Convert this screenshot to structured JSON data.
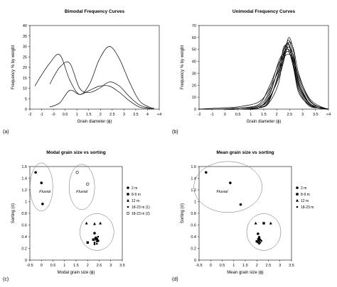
{
  "panel_labels": [
    "(a)",
    "(b)",
    "(c)",
    "(d)"
  ],
  "chart_data": [
    {
      "type": "line",
      "title": "Bimodal Frequency Curves",
      "xlabel": "Grain diameter (ϕ)",
      "ylabel": "Frequency % by weight",
      "xlim": [
        -2,
        4.5
      ],
      "ylim": [
        0,
        40
      ],
      "xticks": [
        "-2",
        "-1",
        "-0",
        "0.5",
        "1",
        "1.5",
        "2",
        "2.5",
        "3",
        "3.5",
        "4",
        "<4"
      ],
      "yticks": [
        "0",
        "5",
        "10",
        "15",
        "20",
        "25",
        "30",
        "35",
        "40"
      ],
      "series": [
        {
          "x": [
            -1.75,
            -1.5,
            -1,
            -0.5,
            0,
            0.5,
            1,
            1.5,
            2,
            2.5,
            3,
            3.5,
            4,
            4.25
          ],
          "values": [
            11,
            15,
            22,
            26,
            14,
            7,
            12,
            24,
            30,
            24,
            13,
            4,
            1,
            0.5
          ]
        },
        {
          "x": [
            -1,
            -0.5,
            0,
            0.5,
            1,
            1.5,
            2,
            2.5,
            3,
            3.5,
            4,
            4.25
          ],
          "values": [
            12,
            20,
            22,
            10,
            8,
            10,
            13,
            11,
            6,
            2,
            0.5,
            0
          ]
        },
        {
          "x": [
            -1,
            -0.5,
            0,
            0.5,
            1,
            1.5,
            2,
            2.5,
            3,
            3.5,
            4,
            4.25
          ],
          "values": [
            1,
            3,
            9,
            7,
            9,
            11,
            11,
            8,
            4,
            1,
            0.3,
            0
          ]
        }
      ]
    },
    {
      "type": "line",
      "title": "Unimodal Frequency Curves",
      "xlabel": "Grain diameter (ϕ)",
      "ylabel": "Frequency % by weight",
      "xlim": [
        -2,
        4.5
      ],
      "ylim": [
        0,
        70
      ],
      "xticks": [
        "-2",
        "-1",
        "0",
        "0.5",
        "1",
        "1.5",
        "2",
        "2.5",
        "3",
        "3.5",
        "<4"
      ],
      "yticks": [
        "0",
        "10",
        "20",
        "30",
        "40",
        "50",
        "60",
        "70"
      ],
      "series": [
        {
          "x": [
            -2,
            -1,
            0,
            1,
            1.5,
            2,
            2.25,
            2.5,
            2.75,
            3,
            3.5,
            4,
            4.5
          ],
          "values": [
            0,
            0,
            0,
            1,
            6,
            30,
            44,
            58,
            42,
            20,
            5,
            1,
            0
          ]
        },
        {
          "x": [
            -2,
            -1,
            0,
            1,
            1.5,
            2,
            2.25,
            2.5,
            2.75,
            3,
            3.5,
            4,
            4.5
          ],
          "values": [
            0,
            0,
            0,
            2,
            10,
            36,
            50,
            55,
            38,
            18,
            4,
            1,
            0
          ]
        },
        {
          "x": [
            -2,
            -1,
            0,
            1,
            1.5,
            2,
            2.25,
            2.5,
            2.75,
            3,
            3.5,
            4,
            4.5
          ],
          "values": [
            0,
            0,
            1,
            3,
            14,
            40,
            47,
            52,
            44,
            24,
            6,
            2,
            0
          ]
        },
        {
          "x": [
            -2,
            -1,
            0,
            1,
            1.5,
            2,
            2.25,
            2.5,
            2.75,
            3,
            3.5,
            4,
            4.5
          ],
          "values": [
            0,
            0,
            0,
            2,
            8,
            28,
            42,
            60,
            48,
            22,
            5,
            1,
            0
          ]
        },
        {
          "x": [
            -2,
            -1,
            0,
            1,
            1.5,
            2,
            2.25,
            2.5,
            2.75,
            3,
            3.5,
            4,
            4.5
          ],
          "values": [
            0,
            0,
            0,
            1,
            12,
            34,
            46,
            50,
            40,
            26,
            8,
            2,
            0
          ]
        },
        {
          "x": [
            -2,
            -1,
            0,
            1,
            1.5,
            2,
            2.25,
            2.5,
            2.75,
            3,
            3.5,
            4,
            4.5
          ],
          "values": [
            0,
            0,
            1,
            4,
            18,
            38,
            45,
            48,
            37,
            21,
            6,
            1,
            0
          ]
        },
        {
          "x": [
            -2,
            -1,
            0,
            1,
            1.5,
            2,
            2.25,
            2.5,
            2.75,
            3,
            3.5,
            4,
            4.5
          ],
          "values": [
            0,
            0,
            0,
            2,
            9,
            26,
            40,
            56,
            50,
            30,
            9,
            2,
            0
          ]
        },
        {
          "x": [
            -2,
            -1,
            0,
            1,
            1.5,
            2,
            2.25,
            2.5,
            2.75,
            3,
            3.5,
            4,
            4.5
          ],
          "values": [
            0,
            0,
            0,
            1,
            5,
            22,
            48,
            54,
            36,
            16,
            3,
            1,
            0
          ]
        },
        {
          "x": [
            -2,
            -1,
            0,
            1,
            1.5,
            2,
            2.25,
            2.5,
            2.75,
            3,
            3.5,
            4,
            4.5
          ],
          "values": [
            0,
            1,
            2,
            6,
            16,
            32,
            43,
            46,
            42,
            28,
            10,
            3,
            0
          ]
        },
        {
          "x": [
            -2,
            -1,
            0,
            1,
            1.5,
            2,
            2.25,
            2.5,
            2.75,
            3,
            3.5,
            4,
            4.5
          ],
          "values": [
            0,
            0,
            0,
            1,
            7,
            30,
            52,
            49,
            34,
            14,
            4,
            1,
            0
          ]
        }
      ]
    },
    {
      "type": "scatter",
      "title": "Modal grain size vs sorting",
      "xlabel": "Modal grain size (ϕ)",
      "ylabel": "Sorting (σ)",
      "xlim": [
        -0.5,
        3.5
      ],
      "ylim": [
        0,
        1.6
      ],
      "xticks": [
        "-0.5",
        "0",
        "0.5",
        "1",
        "1.5",
        "2",
        "2.5",
        "3",
        "3.5"
      ],
      "yticks": [
        "0",
        "0.2",
        "0.4",
        "0.6",
        "0.8",
        "1",
        "1.2",
        "1.4",
        "1.6"
      ],
      "annotations": [
        "Fluvial",
        "Fluvial"
      ],
      "legend": [
        "2 m",
        "8-9 m",
        "12 m",
        "18-23 m (1)",
        "18-23 m (2)"
      ],
      "series": [
        {
          "name": "2 m",
          "marker": "circle",
          "x": [
            -0.25,
            0,
            0.05,
            2.3,
            2.35,
            2.45
          ],
          "values": [
            1.5,
            1.32,
            0.96,
            0.46,
            0.38,
            0.33
          ]
        },
        {
          "name": "8-9 m",
          "marker": "square",
          "x": [
            2.0,
            2.25,
            2.4
          ],
          "values": [
            0.3,
            0.35,
            0.36
          ]
        },
        {
          "name": "12 m",
          "marker": "triangle",
          "x": [
            1.95,
            2.3,
            2.55
          ],
          "values": [
            0.63,
            0.62,
            0.63
          ]
        },
        {
          "name": "18-23 m (1)",
          "marker": "circle-small",
          "x": [
            2.3,
            2.35,
            2.4,
            2.45,
            2.4,
            2.3
          ],
          "values": [
            0.3,
            0.35,
            0.28,
            0.4,
            0.32,
            0.27
          ]
        },
        {
          "name": "18-23 m (2)",
          "marker": "circle-open",
          "x": [
            1.55,
            2.0
          ],
          "values": [
            1.5,
            1.3
          ]
        }
      ]
    },
    {
      "type": "scatter",
      "title": "Mean grain size vs sorting",
      "xlabel": "Mean grain size (ϕ)",
      "ylabel": "Sorting (σ)",
      "xlim": [
        -0.5,
        3.5
      ],
      "ylim": [
        0,
        1.6
      ],
      "xticks": [
        "-0.5",
        "0",
        "0.5",
        "1",
        "1.5",
        "2",
        "2.5",
        "3",
        "3.5"
      ],
      "yticks": [
        "0",
        "0.2",
        "0.4",
        "0.6",
        "0.8",
        "1",
        "1.2",
        "1.4",
        "1.6"
      ],
      "annotations": [
        "Fluvial"
      ],
      "legend": [
        "2 m",
        "8-9 m",
        "12 m",
        "18-23 m"
      ],
      "series": [
        {
          "name": "2 m",
          "marker": "circle",
          "x": [
            -0.2,
            0.85,
            1.3,
            2.05,
            2.1
          ],
          "values": [
            1.5,
            1.32,
            0.95,
            0.45,
            0.38
          ]
        },
        {
          "name": "8-9 m",
          "marker": "square",
          "x": [
            2.0,
            2.1,
            2.3
          ],
          "values": [
            0.32,
            0.35,
            0.63
          ]
        },
        {
          "name": "12 m",
          "marker": "triangle",
          "x": [
            1.95,
            2.6
          ],
          "values": [
            0.63,
            0.63
          ]
        },
        {
          "name": "18-23 m",
          "marker": "circle-small",
          "x": [
            2.05,
            2.1,
            2.15,
            2.1,
            2.05,
            2.15,
            2.1,
            2.2
          ],
          "values": [
            0.3,
            0.32,
            0.35,
            0.28,
            0.36,
            0.3,
            0.4,
            0.33
          ]
        }
      ]
    }
  ]
}
